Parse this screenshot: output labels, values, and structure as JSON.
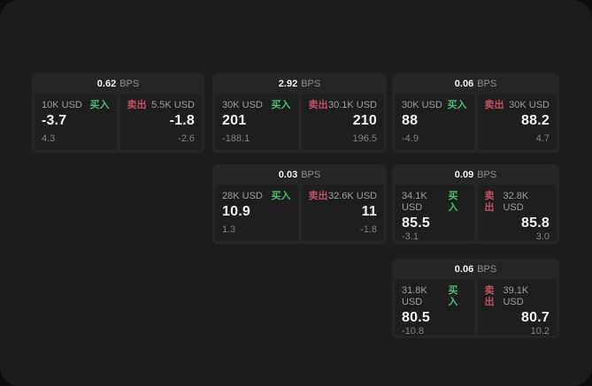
{
  "labels": {
    "bps_unit": "BPS",
    "buy": "买入",
    "sell": "卖出"
  },
  "colors": {
    "buy_green": "#4bbd73",
    "sell_red": "#c44f63",
    "page_bg": "#1c1c1c",
    "card_bg": "#252525",
    "panel_bg": "#1e1e1e"
  },
  "cards": [
    {
      "bps": "0.62",
      "buy": {
        "amount": "10K USD",
        "price": "-3.7",
        "change": "4.3"
      },
      "sell": {
        "amount": "5.5K USD",
        "price": "-1.8",
        "change": "-2.6"
      }
    },
    {
      "bps": "2.92",
      "buy": {
        "amount": "30K USD",
        "price": "201",
        "change": "-188.1"
      },
      "sell": {
        "amount": "30.1K USD",
        "price": "210",
        "change": "196.5"
      }
    },
    {
      "bps": "0.06",
      "buy": {
        "amount": "30K USD",
        "price": "88",
        "change": "-4.9"
      },
      "sell": {
        "amount": "30K USD",
        "price": "88.2",
        "change": "4.7"
      }
    },
    {
      "bps": "0.03",
      "buy": {
        "amount": "28K USD",
        "price": "10.9",
        "change": "1.3"
      },
      "sell": {
        "amount": "32.6K USD",
        "price": "11",
        "change": "-1.8"
      }
    },
    {
      "bps": "0.09",
      "buy": {
        "amount": "34.1K USD",
        "price": "85.5",
        "change": "-3.1"
      },
      "sell": {
        "amount": "32.8K USD",
        "price": "85.8",
        "change": "3.0"
      }
    },
    {
      "bps": "0.06",
      "buy": {
        "amount": "31.8K USD",
        "price": "80.5",
        "change": "-10.8"
      },
      "sell": {
        "amount": "39.1K USD",
        "price": "80.7",
        "change": "10.2"
      }
    }
  ]
}
